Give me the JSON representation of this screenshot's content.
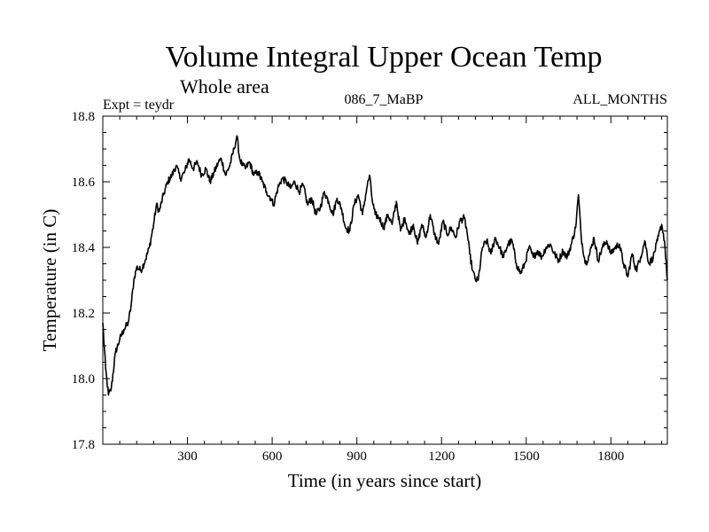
{
  "chart_data": {
    "type": "line",
    "title": "Volume Integral Upper Ocean Temp",
    "subtitle": "Whole area",
    "annotations": {
      "experiment": "Expt = teydr",
      "run": "086_7_MaBP",
      "months": "ALL_MONTHS"
    },
    "xlabel": "Time (in years since start)",
    "ylabel": "Temperature (in C)",
    "xlim": [
      0,
      2000
    ],
    "ylim": [
      17.8,
      18.8
    ],
    "xticks": [
      300,
      600,
      900,
      1200,
      1500,
      1800
    ],
    "xtick_labels": [
      "300",
      "600",
      "900",
      "1200",
      "1500",
      "1800"
    ],
    "yticks": [
      17.8,
      18.0,
      18.2,
      18.4,
      18.6,
      18.8
    ],
    "ytick_labels": [
      "17.8",
      "18.0",
      "18.2",
      "18.4",
      "18.6",
      "18.8"
    ],
    "grid": false,
    "line_color": "#000000",
    "series": [
      {
        "name": "Volume Integral Upper Ocean Temp",
        "x": [
          0,
          10,
          20,
          30,
          45,
          60,
          75,
          90,
          100,
          110,
          120,
          135,
          150,
          165,
          180,
          190,
          200,
          215,
          230,
          245,
          260,
          275,
          290,
          305,
          320,
          335,
          350,
          365,
          380,
          395,
          410,
          420,
          435,
          450,
          465,
          475,
          485,
          495,
          505,
          520,
          535,
          550,
          565,
          580,
          595,
          605,
          620,
          635,
          650,
          665,
          680,
          695,
          710,
          725,
          740,
          755,
          770,
          785,
          800,
          815,
          830,
          845,
          860,
          875,
          890,
          905,
          920,
          935,
          945,
          955,
          965,
          980,
          995,
          1010,
          1025,
          1040,
          1055,
          1070,
          1085,
          1100,
          1115,
          1130,
          1145,
          1160,
          1175,
          1190,
          1205,
          1220,
          1235,
          1250,
          1265,
          1280,
          1290,
          1300,
          1310,
          1320,
          1330,
          1345,
          1360,
          1375,
          1390,
          1405,
          1420,
          1435,
          1450,
          1465,
          1480,
          1495,
          1510,
          1525,
          1540,
          1555,
          1570,
          1585,
          1600,
          1615,
          1630,
          1645,
          1660,
          1675,
          1685,
          1695,
          1710,
          1725,
          1740,
          1755,
          1770,
          1785,
          1800,
          1815,
          1830,
          1845,
          1860,
          1875,
          1890,
          1905,
          1920,
          1935,
          1950,
          1965,
          1980,
          1990,
          2000
        ],
        "values": [
          18.17,
          18.03,
          17.95,
          17.97,
          18.08,
          18.12,
          18.15,
          18.17,
          18.22,
          18.3,
          18.34,
          18.33,
          18.36,
          18.4,
          18.47,
          18.53,
          18.51,
          18.56,
          18.6,
          18.62,
          18.65,
          18.61,
          18.63,
          18.67,
          18.64,
          18.66,
          18.62,
          18.64,
          18.6,
          18.63,
          18.66,
          18.67,
          18.62,
          18.65,
          18.7,
          18.74,
          18.67,
          18.65,
          18.64,
          18.66,
          18.62,
          18.63,
          18.6,
          18.57,
          18.55,
          18.53,
          18.58,
          18.61,
          18.6,
          18.58,
          18.6,
          18.57,
          18.59,
          18.53,
          18.55,
          18.5,
          18.52,
          18.57,
          18.54,
          18.5,
          18.55,
          18.52,
          18.46,
          18.45,
          18.53,
          18.56,
          18.5,
          18.58,
          18.62,
          18.54,
          18.5,
          18.49,
          18.46,
          18.5,
          18.47,
          18.54,
          18.45,
          18.49,
          18.44,
          18.47,
          18.41,
          18.47,
          18.43,
          18.5,
          18.44,
          18.41,
          18.48,
          18.44,
          18.46,
          18.43,
          18.48,
          18.49,
          18.45,
          18.38,
          18.33,
          18.3,
          18.3,
          18.4,
          18.42,
          18.38,
          18.43,
          18.4,
          18.37,
          18.41,
          18.42,
          18.35,
          18.32,
          18.35,
          18.4,
          18.37,
          18.39,
          18.37,
          18.4,
          18.41,
          18.38,
          18.36,
          18.39,
          18.37,
          18.41,
          18.46,
          18.56,
          18.43,
          18.35,
          18.38,
          18.43,
          18.36,
          18.4,
          18.42,
          18.38,
          18.4,
          18.41,
          18.35,
          18.31,
          18.38,
          18.33,
          18.37,
          18.42,
          18.35,
          18.37,
          18.42,
          18.47,
          18.42,
          18.3
        ]
      }
    ]
  }
}
